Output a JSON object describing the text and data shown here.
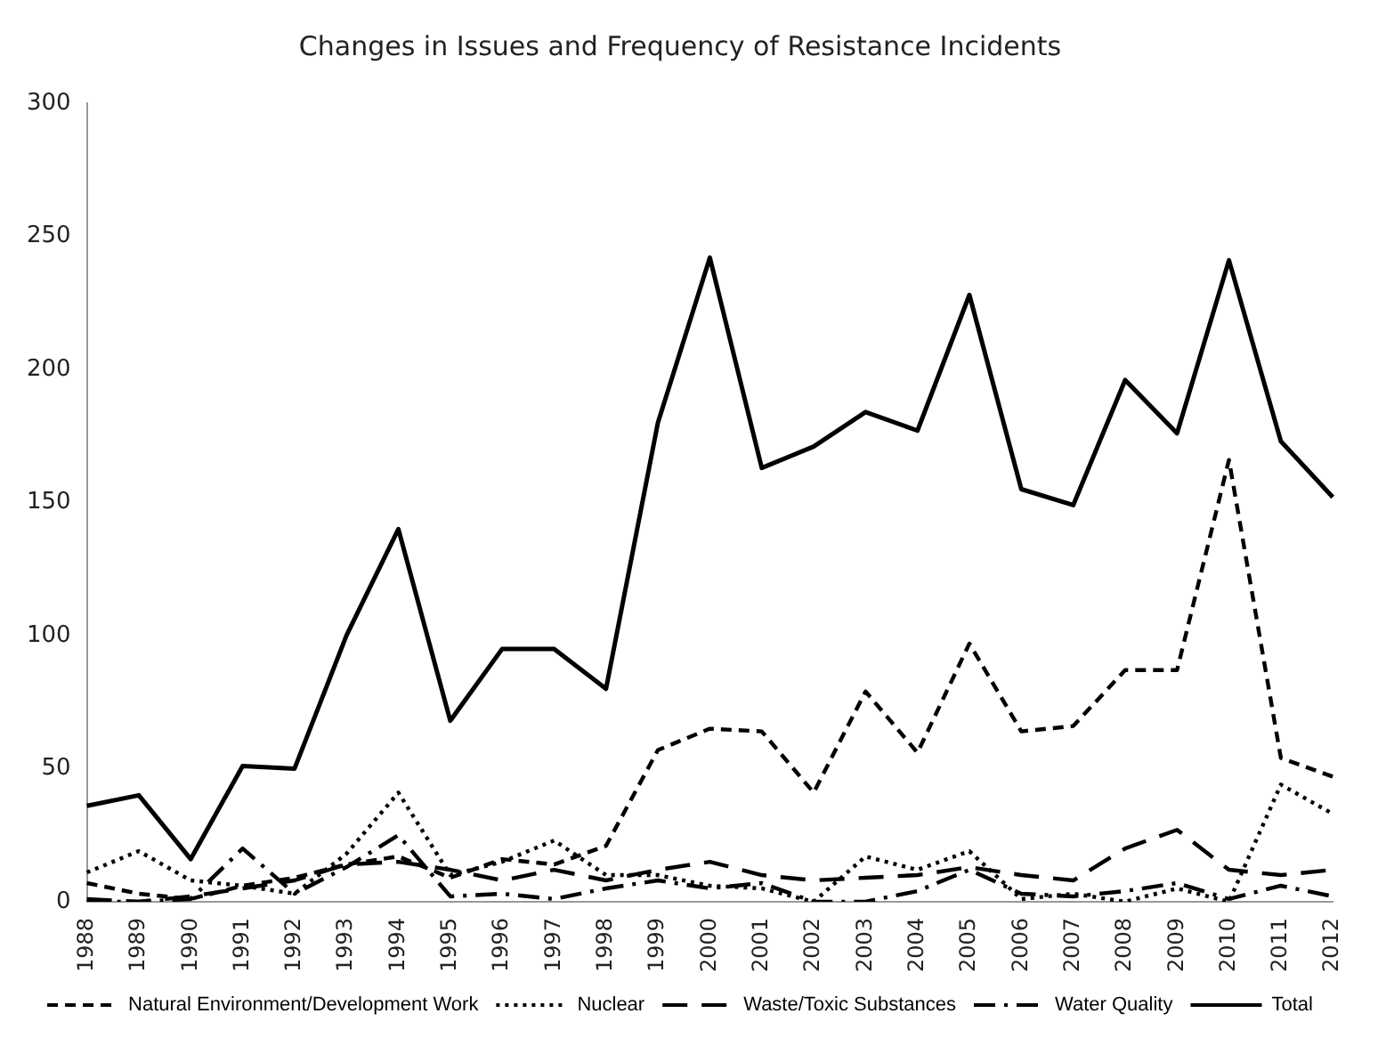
{
  "chart_data": {
    "type": "line",
    "title": "Changes in Issues and Frequency of Resistance Incidents",
    "categories": [
      "1988",
      "1989",
      "1990",
      "1991",
      "1992",
      "1993",
      "1994",
      "1995",
      "1996",
      "1997",
      "1998",
      "1999",
      "2000",
      "2001",
      "2002",
      "2003",
      "2004",
      "2005",
      "2006",
      "2007",
      "2008",
      "2009",
      "2010",
      "2011",
      "2012"
    ],
    "ylim": [
      0,
      300
    ],
    "yticks": [
      0,
      50,
      100,
      150,
      200,
      250,
      300
    ],
    "grid": false,
    "legend": "bottom",
    "marker": "none",
    "series": [
      {
        "name": "Natural Environment/Development Work",
        "color": "#000000",
        "line_style": "dashed",
        "values": [
          7,
          3,
          1,
          6,
          9,
          14,
          17,
          9,
          16,
          14,
          21,
          57,
          65,
          64,
          41,
          79,
          56,
          97,
          64,
          66,
          87,
          87,
          166,
          54,
          47
        ]
      },
      {
        "name": "Nuclear",
        "color": "#000000",
        "line_style": "dotted",
        "values": [
          11,
          19,
          8,
          6,
          3,
          18,
          41,
          10,
          15,
          23,
          10,
          10,
          6,
          5,
          0,
          17,
          12,
          19,
          1,
          3,
          0,
          5,
          0,
          44,
          33
        ]
      },
      {
        "name": "Waste/Toxic Substances",
        "color": "#000000",
        "line_style": "dashed",
        "values": [
          1,
          0,
          2,
          5,
          8,
          14,
          15,
          12,
          8,
          12,
          8,
          12,
          15,
          10,
          8,
          9,
          10,
          13,
          10,
          8,
          20,
          27,
          12,
          10,
          12
        ]
      },
      {
        "name": "Water Quality",
        "color": "#000000",
        "line_style": "dashed",
        "values": [
          0,
          0,
          1,
          20,
          3,
          13,
          25,
          2,
          3,
          1,
          5,
          8,
          5,
          7,
          0,
          0,
          4,
          12,
          3,
          2,
          4,
          7,
          1,
          6,
          2
        ]
      },
      {
        "name": "Total",
        "color": "#000000",
        "line_style": "solid",
        "values": [
          36,
          40,
          16,
          51,
          50,
          100,
          140,
          68,
          95,
          95,
          80,
          180,
          242,
          163,
          171,
          184,
          177,
          228,
          155,
          149,
          196,
          176,
          241,
          173,
          152
        ]
      }
    ]
  }
}
